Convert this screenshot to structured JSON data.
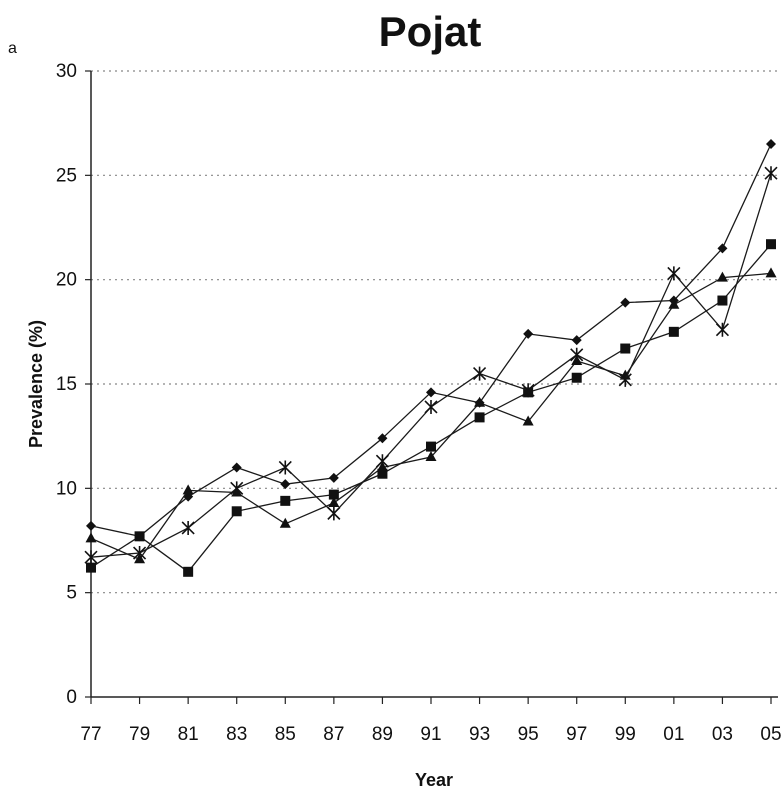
{
  "panel_letter": "a",
  "chart_data": {
    "type": "line",
    "title": "Pojat",
    "xlabel": "Year",
    "ylabel": "Prevalence (%)",
    "categories": [
      "77",
      "79",
      "81",
      "83",
      "85",
      "87",
      "89",
      "91",
      "93",
      "95",
      "97",
      "99",
      "01",
      "03",
      "05"
    ],
    "ylim": [
      0,
      30
    ],
    "yticks": [
      0,
      5,
      10,
      15,
      20,
      25,
      30
    ],
    "grid": "horizontal dotted",
    "legend": "none",
    "series": [
      {
        "marker": "diamond",
        "values": [
          8.2,
          7.7,
          9.6,
          11.0,
          10.2,
          10.5,
          12.4,
          14.6,
          14.1,
          17.4,
          17.1,
          18.9,
          19.0,
          21.5,
          26.5
        ]
      },
      {
        "marker": "square",
        "values": [
          6.2,
          7.7,
          6.0,
          8.9,
          9.4,
          9.7,
          10.7,
          12.0,
          13.4,
          14.6,
          15.3,
          16.7,
          17.5,
          19.0,
          21.7
        ]
      },
      {
        "marker": "triangle",
        "values": [
          7.6,
          6.6,
          9.9,
          9.8,
          8.3,
          9.3,
          11.0,
          11.5,
          14.1,
          13.2,
          16.1,
          15.4,
          18.8,
          20.1,
          20.3
        ]
      },
      {
        "marker": "star",
        "values": [
          6.7,
          6.9,
          8.1,
          10.0,
          11.0,
          8.8,
          11.3,
          13.9,
          15.5,
          14.7,
          16.4,
          15.2,
          20.3,
          17.6,
          25.1
        ]
      }
    ]
  }
}
